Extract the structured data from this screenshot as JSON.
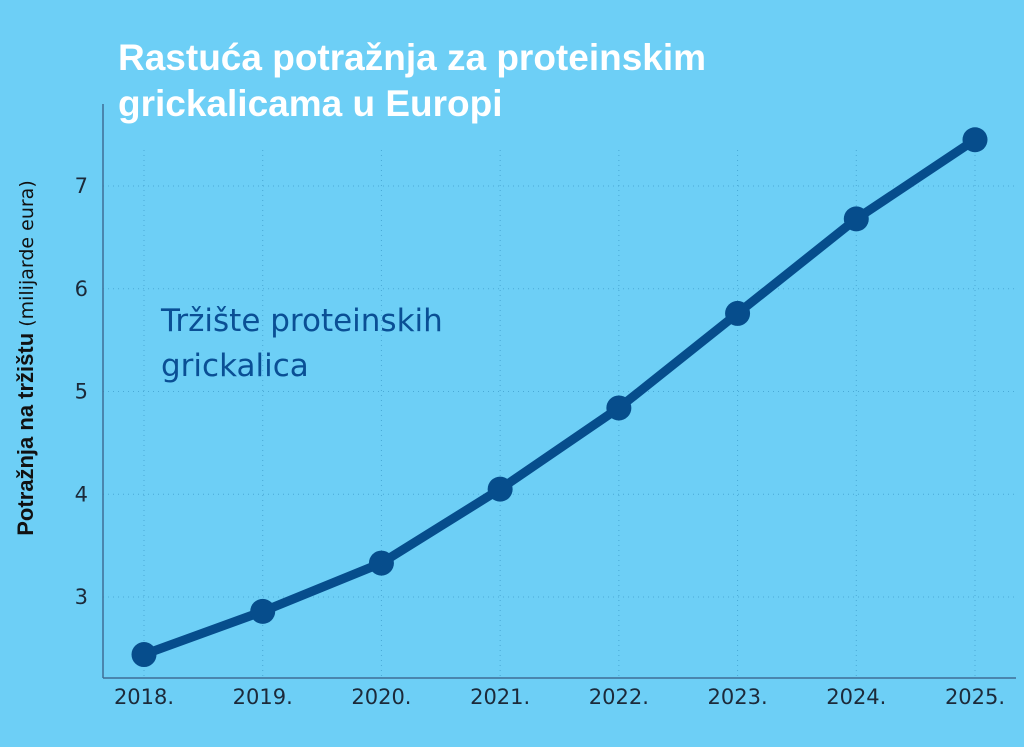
{
  "chart_data": {
    "type": "line",
    "title_lines": [
      "Rastuća potražnja za proteinskim",
      "grickalicama u Europi"
    ],
    "ylabel_bold": "Potražnja na tržištu",
    "ylabel_normal": " (milijarde eura)",
    "categories": [
      "2018.",
      "2019.",
      "2020.",
      "2021.",
      "2022.",
      "2023.",
      "2024.",
      "2025."
    ],
    "series": [
      {
        "annotation_lines": [
          "Tržište proteinskih",
          "grickalica"
        ],
        "values": [
          2.44,
          2.86,
          3.33,
          4.05,
          4.84,
          5.76,
          6.68,
          7.45
        ]
      }
    ],
    "yticks": [
      3,
      4,
      5,
      6,
      7
    ],
    "ylim": [
      2.2,
      7.6
    ],
    "grid": true,
    "colors": {
      "background": "#6dcff6",
      "line": "#064d8c",
      "title": "#ffffff",
      "annotation": "#0a4f95"
    }
  }
}
